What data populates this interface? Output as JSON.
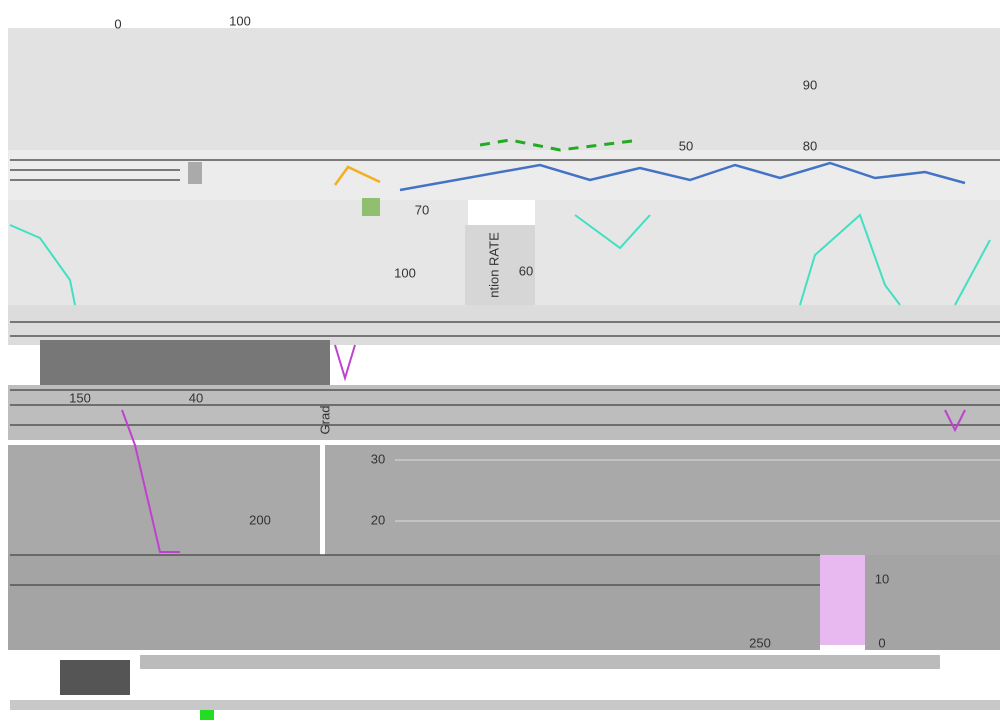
{
  "labels": [
    "0",
    "100",
    "90",
    "50",
    "80",
    "70",
    "60",
    "100",
    "ntion RATE",
    "150",
    "40",
    "Grad",
    "30",
    "20",
    "200",
    "10",
    "250",
    "0"
  ]
}
